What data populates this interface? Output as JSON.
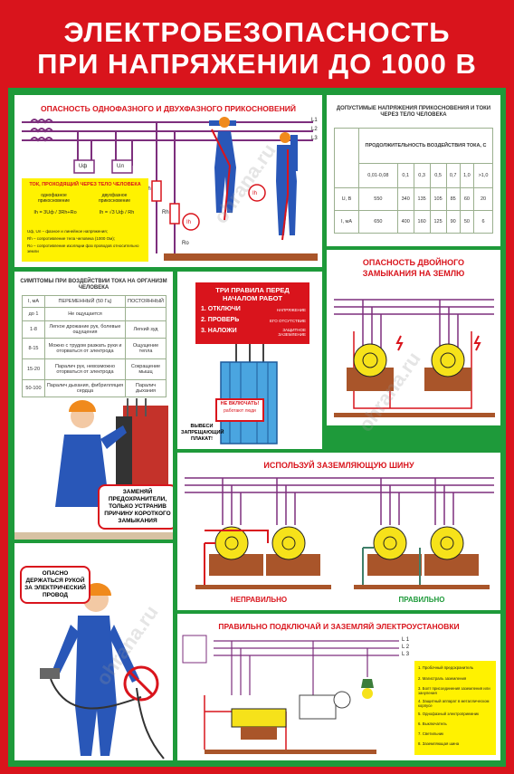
{
  "poster": {
    "title_line1": "ЭЛЕКТРОБЕЗОПАСНОСТЬ",
    "title_line2": "ПРИ НАПРЯЖЕНИИ ДО 1000 В"
  },
  "panel1": {
    "title": "ОПАСНОСТЬ ОДНОФАЗНОГО И ДВУХФАЗНОГО ПРИКОСНОВЕНИЙ",
    "line_labels": [
      "L1",
      "L2",
      "L3"
    ],
    "uf": "Uф",
    "ul": "Uл",
    "r_labels": [
      "Rh",
      "Rh",
      "Ro"
    ],
    "ih": "Ih",
    "box_title": "ТОК, ПРОХОДЯЩИЙ ЧЕРЕЗ ТЕЛО ЧЕЛОВЕКА",
    "col1": "однофазное прикосновение",
    "col2": "двухфазное прикосновение",
    "f1": "Ih = 3Uф / 3Rh+Rо",
    "f2": "Ih = √3 Uф / Rh",
    "legend": [
      "Uф, Uл – фазное и линейное напряжения;",
      "Rh – сопротивление тела человека (1000 Ом);",
      "Rо – сопротивление изоляции фаз проводов относительно земли"
    ]
  },
  "panel2": {
    "title": "ДОПУСТИМЫЕ НАПРЯЖЕНИЯ ПРИКОСНОВЕНИЯ И ТОКИ ЧЕРЕЗ ТЕЛО ЧЕЛОВЕКА",
    "duration_header": "ПРОДОЛЖИТЕЛЬНОСТЬ ВОЗДЕЙСТВИЯ ТОКА, С",
    "durations": [
      "0,01-0,08",
      "0,1",
      "0,3",
      "0,5",
      "0,7",
      "1,0",
      ">1,0"
    ],
    "u_label": "U, В",
    "u_values": [
      "550",
      "340",
      "135",
      "105",
      "85",
      "60",
      "20"
    ],
    "i_label": "I, мА",
    "i_values": [
      "650",
      "400",
      "160",
      "125",
      "90",
      "50",
      "6"
    ]
  },
  "panel3": {
    "title": "СИМПТОМЫ ПРИ ВОЗДЕЙСТВИИ ТОКА НА ОРГАНИЗМ ЧЕЛОВЕКА",
    "headers": [
      "I, мА",
      "ПЕРЕМЕННЫЙ (50 Гц)",
      "ПОСТОЯННЫЙ"
    ],
    "rows": [
      [
        "до 1",
        "Не ощущается",
        ""
      ],
      [
        "1-8",
        "Легкое дрожание рук, болевые ощущения",
        "Легкий зуд"
      ],
      [
        "8-15",
        "Можно с трудом разжать руки и оторваться от электрода",
        "Ощущение тепла"
      ],
      [
        "15-20",
        "Паралич рук, невозможно оторваться от электрода",
        "Сокращение мышц"
      ],
      [
        "50-100",
        "Паралич дыхания, фибрилляция сердца",
        "Паралич дыхания"
      ]
    ],
    "note": "ЗАМЕНЯЙ ПРЕДОХРАНИТЕЛИ, ТОЛЬКО УСТРАНИВ ПРИЧИНУ КОРОТКОГО ЗАМЫКАНИЯ"
  },
  "panel4": {
    "title": "ТРИ ПРАВИЛА ПЕРЕД НАЧАЛОМ РАБОТ",
    "rules": [
      "1. ОТКЛЮЧИ",
      "2. ПРОВЕРЬ",
      "3. НАЛОЖИ"
    ],
    "rule_notes": [
      "НАПРЯЖЕНИЕ",
      "ЕГО ОТСУТСТВИЕ",
      "ЗАЩИТНОЕ ЗАЗЕМЛЕНИЕ"
    ],
    "sign_line1": "НЕ ВКЛЮЧАТЬ!",
    "sign_line2": "работают люди",
    "note": "ВЫВЕСИ ЗАПРЕЩАЮЩИЙ ПЛАКАТ!"
  },
  "panel5": {
    "title": "ОПАСНОСТЬ ДВОЙНОГО ЗАМЫКАНИЯ НА ЗЕМЛЮ"
  },
  "panel6": {
    "title": "ИСПОЛЬЗУЙ ЗАЗЕМЛЯЮЩУЮ ШИНУ",
    "wrong": "НЕПРАВИЛЬНО",
    "right": "ПРАВИЛЬНО"
  },
  "panel7": {
    "note": "ОПАСНО ДЕРЖАТЬСЯ РУКОЙ ЗА ЭЛЕКТРИЧЕСКИЙ ПРОВОД"
  },
  "panel8": {
    "title": "ПРАВИЛЬНО ПОДКЛЮЧАЙ И ЗАЗЕМЛЯЙ ЭЛЕКТРОУСТАНОВКИ",
    "lines": [
      "L 1",
      "L 2",
      "L 3"
    ],
    "legend": [
      "1. Пробочный предохранитель",
      "2. Магистраль заземления",
      "3. Болт присоединения заземления или зануления",
      "4. Защитный аппарат в металлическом корпусе",
      "5. Однофазный электроприемник",
      "6. Выключатель",
      "7. Светильник",
      "8. Заземляющая шина"
    ]
  },
  "colors": {
    "background": "#d9141c",
    "frame": "#1e9a3a",
    "worker_blue": "#2957b8",
    "helmet_orange": "#f08a1c",
    "motor_yellow": "#f6e21a",
    "wire_purple": "#7d2f7d",
    "ground_brown": "#a9552a",
    "note_yellow": "#fff200"
  },
  "watermark": "ohrana.ru"
}
